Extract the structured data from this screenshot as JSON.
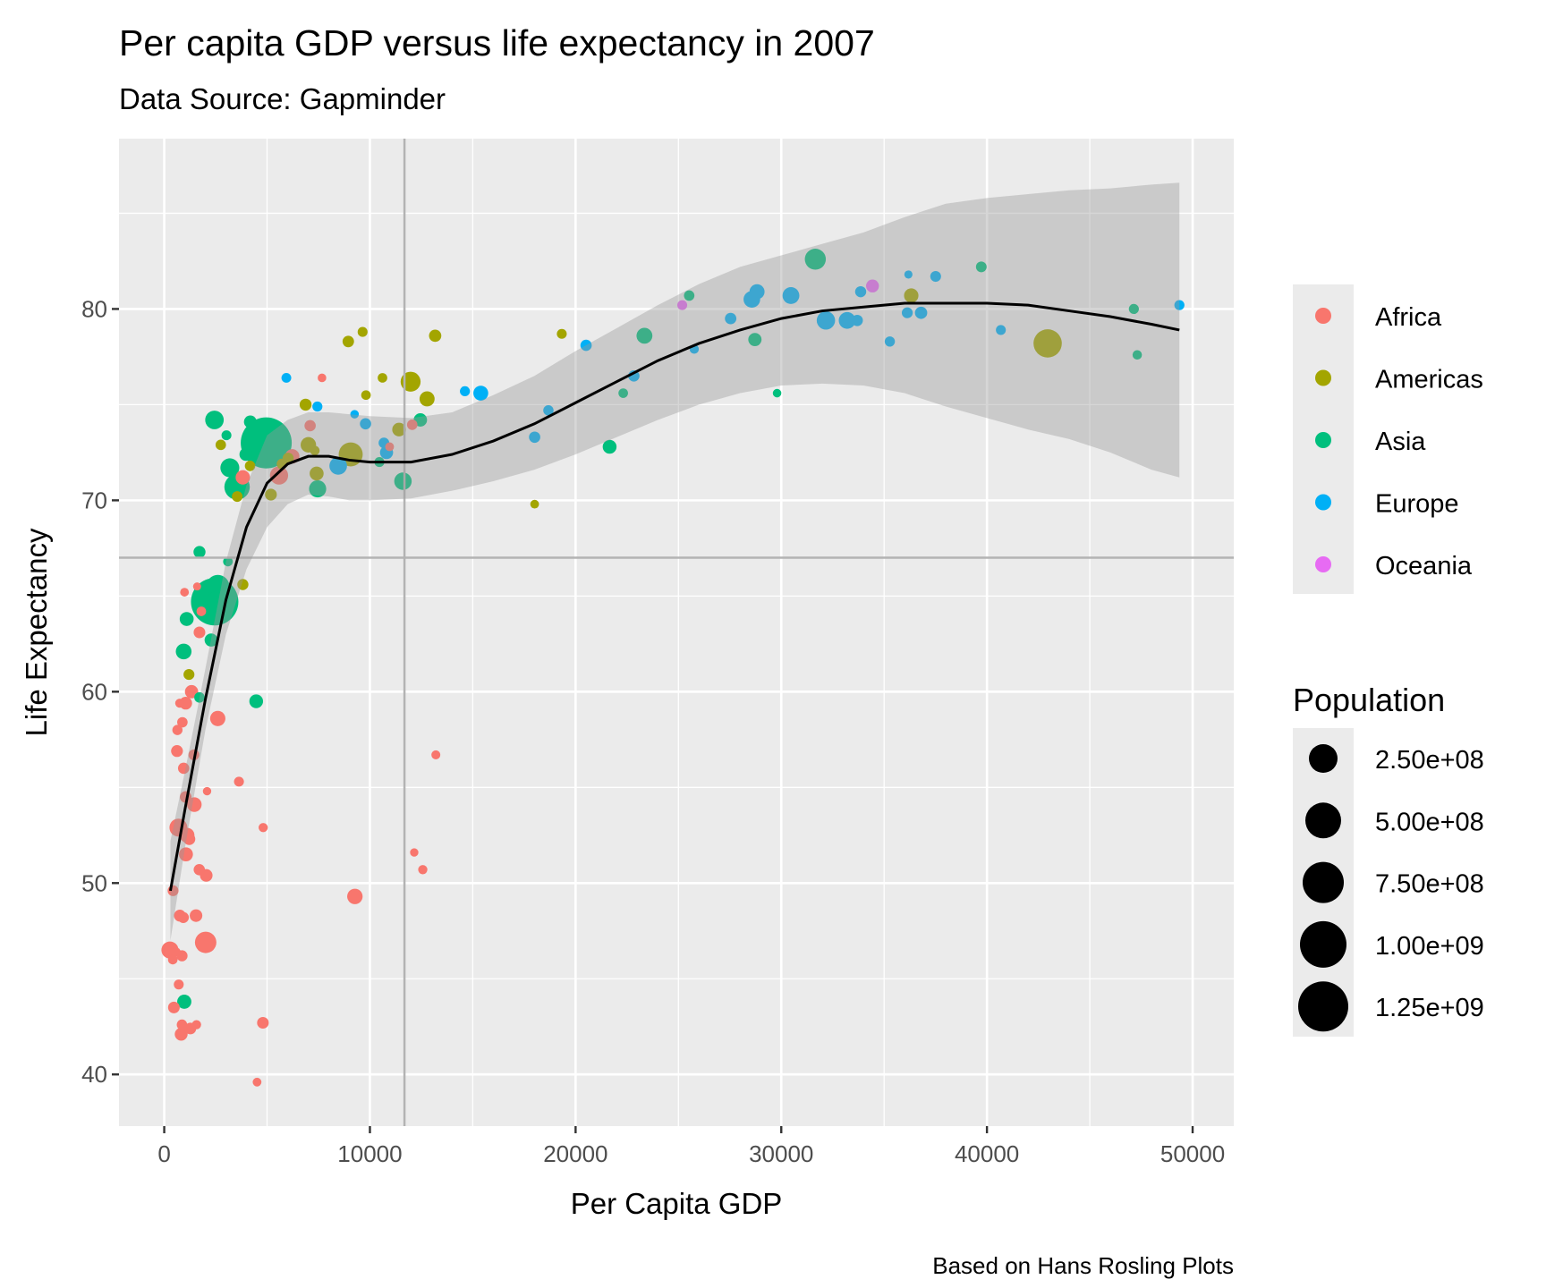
{
  "chart_data": {
    "type": "scatter",
    "title": "Per capita GDP versus life expectancy in 2007",
    "subtitle": "Data Source: Gapminder",
    "caption": "Based on Hans Rosling Plots",
    "xlabel": "Per Capita GDP",
    "ylabel": "Life Expectancy",
    "xlim": [
      -2200,
      52000
    ],
    "ylim": [
      37.3,
      88.9
    ],
    "x_ticks": [
      0,
      10000,
      20000,
      30000,
      40000,
      50000
    ],
    "x_tick_labels": [
      "0",
      "10000",
      "20000",
      "30000",
      "40000",
      "50000"
    ],
    "x_minor": [
      5000,
      15000,
      25000,
      35000,
      45000
    ],
    "y_ticks": [
      40,
      50,
      60,
      70,
      80
    ],
    "y_tick_labels": [
      "40",
      "50",
      "60",
      "70",
      "80"
    ],
    "y_minor": [
      45,
      55,
      65,
      75,
      85
    ],
    "grid": true,
    "reference_lines": {
      "vline_x": 11680,
      "hline_y": 67.0,
      "color": "#b3b3b3"
    },
    "colors": {
      "Africa": "#F8766D",
      "Americas": "#A3A500",
      "Asia": "#00BF7D",
      "Europe": "#00B0F6",
      "Oceania": "#E76BF3"
    },
    "legend_color": {
      "title": "",
      "position": "right",
      "entries": [
        "Africa",
        "Americas",
        "Asia",
        "Europe",
        "Oceania"
      ]
    },
    "legend_size": {
      "title": "Population",
      "position": "right",
      "values": [
        250000000,
        500000000,
        750000000,
        1000000000,
        1250000000
      ],
      "labels": [
        "2.50e+08",
        "5.00e+08",
        "7.50e+08",
        "1.00e+09",
        "1.25e+09"
      ]
    },
    "smooth": {
      "method": "loess",
      "line_color": "#000000",
      "band_color": "#999999",
      "points": [
        {
          "x": 300,
          "y": 49.6,
          "lo": 47.0,
          "hi": 52.2
        },
        {
          "x": 1000,
          "y": 53.8,
          "lo": 51.8,
          "hi": 55.8
        },
        {
          "x": 2000,
          "y": 59.6,
          "lo": 58.0,
          "hi": 61.2
        },
        {
          "x": 3000,
          "y": 64.8,
          "lo": 63.0,
          "hi": 66.8
        },
        {
          "x": 4000,
          "y": 68.6,
          "lo": 66.4,
          "hi": 70.8
        },
        {
          "x": 5000,
          "y": 70.9,
          "lo": 68.6,
          "hi": 73.4
        },
        {
          "x": 6000,
          "y": 71.9,
          "lo": 69.8,
          "hi": 74.2
        },
        {
          "x": 7000,
          "y": 72.3,
          "lo": 70.3,
          "hi": 74.6
        },
        {
          "x": 8000,
          "y": 72.3,
          "lo": 70.2,
          "hi": 74.6
        },
        {
          "x": 9000,
          "y": 72.1,
          "lo": 70.0,
          "hi": 74.5
        },
        {
          "x": 10000,
          "y": 72.0,
          "lo": 70.0,
          "hi": 74.4
        },
        {
          "x": 12000,
          "y": 72.0,
          "lo": 70.1,
          "hi": 74.3
        },
        {
          "x": 14000,
          "y": 72.4,
          "lo": 70.5,
          "hi": 74.6
        },
        {
          "x": 16000,
          "y": 73.1,
          "lo": 71.0,
          "hi": 75.5
        },
        {
          "x": 18000,
          "y": 74.0,
          "lo": 71.6,
          "hi": 76.5
        },
        {
          "x": 20000,
          "y": 75.1,
          "lo": 72.4,
          "hi": 77.8
        },
        {
          "x": 22000,
          "y": 76.2,
          "lo": 73.3,
          "hi": 79.0
        },
        {
          "x": 24000,
          "y": 77.3,
          "lo": 74.2,
          "hi": 80.2
        },
        {
          "x": 26000,
          "y": 78.2,
          "lo": 75.0,
          "hi": 81.3
        },
        {
          "x": 28000,
          "y": 78.9,
          "lo": 75.6,
          "hi": 82.2
        },
        {
          "x": 30000,
          "y": 79.5,
          "lo": 76.0,
          "hi": 82.8
        },
        {
          "x": 32000,
          "y": 79.9,
          "lo": 76.1,
          "hi": 83.4
        },
        {
          "x": 34000,
          "y": 80.1,
          "lo": 76.0,
          "hi": 84.0
        },
        {
          "x": 36000,
          "y": 80.3,
          "lo": 75.6,
          "hi": 84.8
        },
        {
          "x": 38000,
          "y": 80.3,
          "lo": 74.9,
          "hi": 85.5
        },
        {
          "x": 40000,
          "y": 80.3,
          "lo": 74.3,
          "hi": 85.8
        },
        {
          "x": 42000,
          "y": 80.2,
          "lo": 73.7,
          "hi": 86.0
        },
        {
          "x": 44000,
          "y": 79.9,
          "lo": 73.2,
          "hi": 86.2
        },
        {
          "x": 46000,
          "y": 79.6,
          "lo": 72.5,
          "hi": 86.3
        },
        {
          "x": 48000,
          "y": 79.2,
          "lo": 71.6,
          "hi": 86.5
        },
        {
          "x": 49357,
          "y": 78.9,
          "lo": 71.2,
          "hi": 86.6
        }
      ]
    },
    "points": [
      {
        "c": "Africa",
        "x": 6223,
        "y": 72.3,
        "pop": 33
      },
      {
        "c": "Africa",
        "x": 4797,
        "y": 42.7,
        "pop": 12
      },
      {
        "c": "Africa",
        "x": 1441,
        "y": 56.7,
        "pop": 8
      },
      {
        "c": "Africa",
        "x": 12570,
        "y": 50.7,
        "pop": 2
      },
      {
        "c": "Africa",
        "x": 1217,
        "y": 52.3,
        "pop": 14
      },
      {
        "c": "Africa",
        "x": 430,
        "y": 49.6,
        "pop": 8
      },
      {
        "c": "Africa",
        "x": 2042,
        "y": 50.4,
        "pop": 18
      },
      {
        "c": "Africa",
        "x": 706,
        "y": 44.7,
        "pop": 4
      },
      {
        "c": "Africa",
        "x": 1704,
        "y": 50.7,
        "pop": 10
      },
      {
        "c": "Africa",
        "x": 986,
        "y": 65.2,
        "pop": 1
      },
      {
        "c": "Africa",
        "x": 278,
        "y": 46.5,
        "pop": 64
      },
      {
        "c": "Africa",
        "x": 3633,
        "y": 55.3,
        "pop": 4
      },
      {
        "c": "Africa",
        "x": 1545,
        "y": 48.3,
        "pop": 18
      },
      {
        "c": "Africa",
        "x": 2082,
        "y": 54.8,
        "pop": 0.5
      },
      {
        "c": "Africa",
        "x": 5581,
        "y": 71.3,
        "pop": 80
      },
      {
        "c": "Africa",
        "x": 12154,
        "y": 51.6,
        "pop": 0.5
      },
      {
        "c": "Africa",
        "x": 641,
        "y": 58.0,
        "pop": 5
      },
      {
        "c": "Africa",
        "x": 690,
        "y": 52.9,
        "pop": 76
      },
      {
        "c": "Africa",
        "x": 13206,
        "y": 56.7,
        "pop": 1.5
      },
      {
        "c": "Africa",
        "x": 753,
        "y": 59.4,
        "pop": 1.7
      },
      {
        "c": "Africa",
        "x": 1328,
        "y": 60.0,
        "pop": 23
      },
      {
        "c": "Africa",
        "x": 943,
        "y": 56.0,
        "pop": 10
      },
      {
        "c": "Africa",
        "x": 579,
        "y": 46.4,
        "pop": 1.5
      },
      {
        "c": "Africa",
        "x": 1463,
        "y": 54.1,
        "pop": 35
      },
      {
        "c": "Africa",
        "x": 1569,
        "y": 42.6,
        "pop": 2
      },
      {
        "c": "Africa",
        "x": 415,
        "y": 46.0,
        "pop": 3
      },
      {
        "c": "Africa",
        "x": 12057,
        "y": 73.95,
        "pop": 6
      },
      {
        "c": "Africa",
        "x": 1045,
        "y": 59.4,
        "pop": 19
      },
      {
        "c": "Africa",
        "x": 759,
        "y": 48.3,
        "pop": 13
      },
      {
        "c": "Africa",
        "x": 1043,
        "y": 54.5,
        "pop": 12
      },
      {
        "c": "Africa",
        "x": 1803,
        "y": 64.2,
        "pop": 3
      },
      {
        "c": "Africa",
        "x": 10957,
        "y": 72.8,
        "pop": 1.2
      },
      {
        "c": "Africa",
        "x": 3820,
        "y": 71.2,
        "pop": 33
      },
      {
        "c": "Africa",
        "x": 824,
        "y": 42.1,
        "pop": 20
      },
      {
        "c": "Africa",
        "x": 4811,
        "y": 52.9,
        "pop": 2
      },
      {
        "c": "Africa",
        "x": 620,
        "y": 56.9,
        "pop": 13
      },
      {
        "c": "Africa",
        "x": 2014,
        "y": 46.9,
        "pop": 135
      },
      {
        "c": "Africa",
        "x": 7670,
        "y": 76.4,
        "pop": 0.8
      },
      {
        "c": "Africa",
        "x": 863,
        "y": 46.2,
        "pop": 9
      },
      {
        "c": "Africa",
        "x": 1598,
        "y": 65.5,
        "pop": 0.2
      },
      {
        "c": "Africa",
        "x": 1712,
        "y": 63.1,
        "pop": 12
      },
      {
        "c": "Africa",
        "x": 862,
        "y": 42.6,
        "pop": 6
      },
      {
        "c": "Africa",
        "x": 926,
        "y": 48.2,
        "pop": 9
      },
      {
        "c": "Africa",
        "x": 9270,
        "y": 49.3,
        "pop": 44
      },
      {
        "c": "Africa",
        "x": 2602,
        "y": 58.6,
        "pop": 42
      },
      {
        "c": "Africa",
        "x": 4513,
        "y": 39.6,
        "pop": 1.1
      },
      {
        "c": "Africa",
        "x": 1107,
        "y": 52.5,
        "pop": 38
      },
      {
        "c": "Africa",
        "x": 883,
        "y": 58.4,
        "pop": 6
      },
      {
        "c": "Africa",
        "x": 7093,
        "y": 73.9,
        "pop": 10
      },
      {
        "c": "Africa",
        "x": 1056,
        "y": 51.5,
        "pop": 29
      },
      {
        "c": "Africa",
        "x": 1271,
        "y": 42.4,
        "pop": 12
      },
      {
        "c": "Africa",
        "x": 470,
        "y": 43.5,
        "pop": 12
      },
      {
        "c": "Americas",
        "x": 12779,
        "y": 75.3,
        "pop": 40
      },
      {
        "c": "Americas",
        "x": 3822,
        "y": 65.6,
        "pop": 9
      },
      {
        "c": "Americas",
        "x": 9066,
        "y": 72.4,
        "pop": 190
      },
      {
        "c": "Americas",
        "x": 36319,
        "y": 80.7,
        "pop": 33
      },
      {
        "c": "Americas",
        "x": 13172,
        "y": 78.6,
        "pop": 16
      },
      {
        "c": "Americas",
        "x": 7007,
        "y": 72.9,
        "pop": 44
      },
      {
        "c": "Americas",
        "x": 9645,
        "y": 78.8,
        "pop": 4
      },
      {
        "c": "Americas",
        "x": 8948,
        "y": 78.3,
        "pop": 11
      },
      {
        "c": "Americas",
        "x": 6025,
        "y": 72.2,
        "pop": 9
      },
      {
        "c": "Americas",
        "x": 6873,
        "y": 75.0,
        "pop": 14
      },
      {
        "c": "Americas",
        "x": 5728,
        "y": 71.9,
        "pop": 7
      },
      {
        "c": "Americas",
        "x": 5186,
        "y": 70.3,
        "pop": 13
      },
      {
        "c": "Americas",
        "x": 1202,
        "y": 60.9,
        "pop": 8
      },
      {
        "c": "Americas",
        "x": 3548,
        "y": 70.2,
        "pop": 7
      },
      {
        "c": "Americas",
        "x": 7321,
        "y": 72.6,
        "pop": 3
      },
      {
        "c": "Americas",
        "x": 11978,
        "y": 76.2,
        "pop": 108
      },
      {
        "c": "Americas",
        "x": 2749,
        "y": 72.9,
        "pop": 6
      },
      {
        "c": "Americas",
        "x": 9809,
        "y": 75.5,
        "pop": 3
      },
      {
        "c": "Americas",
        "x": 4173,
        "y": 71.8,
        "pop": 6
      },
      {
        "c": "Americas",
        "x": 7409,
        "y": 71.4,
        "pop": 29
      },
      {
        "c": "Americas",
        "x": 19329,
        "y": 78.7,
        "pop": 4
      },
      {
        "c": "Americas",
        "x": 18009,
        "y": 69.8,
        "pop": 1
      },
      {
        "c": "Americas",
        "x": 42952,
        "y": 78.2,
        "pop": 301
      },
      {
        "c": "Americas",
        "x": 10611,
        "y": 76.4,
        "pop": 3
      },
      {
        "c": "Americas",
        "x": 11416,
        "y": 73.7,
        "pop": 26
      },
      {
        "c": "Asia",
        "x": 2605,
        "y": 64.7,
        "pop": 150
      },
      {
        "c": "Asia",
        "x": 4959,
        "y": 73.0,
        "pop": 1319
      },
      {
        "c": "Asia",
        "x": 1714,
        "y": 67.3,
        "pop": 14
      },
      {
        "c": "Asia",
        "x": 2452,
        "y": 64.7,
        "pop": 1110
      },
      {
        "c": "Asia",
        "x": 3541,
        "y": 70.7,
        "pop": 224
      },
      {
        "c": "Asia",
        "x": 11606,
        "y": 71.0,
        "pop": 69
      },
      {
        "c": "Asia",
        "x": 4471,
        "y": 59.5,
        "pop": 27
      },
      {
        "c": "Asia",
        "x": 25523,
        "y": 80.7,
        "pop": 6
      },
      {
        "c": "Asia",
        "x": 31656,
        "y": 82.6,
        "pop": 127
      },
      {
        "c": "Asia",
        "x": 4519,
        "y": 72.5,
        "pop": 6
      },
      {
        "c": "Asia",
        "x": 23348,
        "y": 78.6,
        "pop": 49
      },
      {
        "c": "Asia",
        "x": 47307,
        "y": 77.6,
        "pop": 2.5
      },
      {
        "c": "Asia",
        "x": 10461,
        "y": 72.0,
        "pop": 4
      },
      {
        "c": "Asia",
        "x": 12452,
        "y": 74.2,
        "pop": 24
      },
      {
        "c": "Asia",
        "x": 3096,
        "y": 66.8,
        "pop": 3
      },
      {
        "c": "Asia",
        "x": 944,
        "y": 62.1,
        "pop": 47
      },
      {
        "c": "Asia",
        "x": 1091,
        "y": 63.8,
        "pop": 29
      },
      {
        "c": "Asia",
        "x": 22316,
        "y": 75.6,
        "pop": 3
      },
      {
        "c": "Asia",
        "x": 2606,
        "y": 65.5,
        "pop": 169
      },
      {
        "c": "Asia",
        "x": 3190,
        "y": 71.7,
        "pop": 91
      },
      {
        "c": "Asia",
        "x": 21655,
        "y": 72.8,
        "pop": 28
      },
      {
        "c": "Asia",
        "x": 47143,
        "y": 80.0,
        "pop": 4.5
      },
      {
        "c": "Asia",
        "x": 3970,
        "y": 72.4,
        "pop": 20
      },
      {
        "c": "Asia",
        "x": 4185,
        "y": 74.1,
        "pop": 19
      },
      {
        "c": "Asia",
        "x": 28718,
        "y": 78.4,
        "pop": 23
      },
      {
        "c": "Asia",
        "x": 7458,
        "y": 70.6,
        "pop": 65
      },
      {
        "c": "Asia",
        "x": 2442,
        "y": 74.2,
        "pop": 85
      },
      {
        "c": "Asia",
        "x": 3025,
        "y": 73.4,
        "pop": 4
      },
      {
        "c": "Asia",
        "x": 2281,
        "y": 62.7,
        "pop": 22
      },
      {
        "c": "Asia",
        "x": 29796,
        "y": 75.6,
        "pop": 0.7
      },
      {
        "c": "Asia",
        "x": 39725,
        "y": 82.2,
        "pop": 7
      },
      {
        "c": "Asia",
        "x": 1713,
        "y": 59.7,
        "pop": 6
      },
      {
        "c": "Asia",
        "x": 974,
        "y": 43.8,
        "pop": 31
      },
      {
        "c": "Europe",
        "x": 5937,
        "y": 76.4,
        "pop": 3.6
      },
      {
        "c": "Europe",
        "x": 36126,
        "y": 79.8,
        "pop": 8
      },
      {
        "c": "Europe",
        "x": 33693,
        "y": 79.4,
        "pop": 10
      },
      {
        "c": "Europe",
        "x": 7446,
        "y": 74.9,
        "pop": 4.5
      },
      {
        "c": "Europe",
        "x": 10681,
        "y": 73.0,
        "pop": 7
      },
      {
        "c": "Europe",
        "x": 14619,
        "y": 75.7,
        "pop": 4.5
      },
      {
        "c": "Europe",
        "x": 22833,
        "y": 76.5,
        "pop": 10
      },
      {
        "c": "Europe",
        "x": 35278,
        "y": 78.3,
        "pop": 5
      },
      {
        "c": "Europe",
        "x": 33207,
        "y": 79.4,
        "pop": 5
      },
      {
        "c": "Europe",
        "x": 30470,
        "y": 80.7,
        "pop": 61
      },
      {
        "c": "Europe",
        "x": 32170,
        "y": 79.4,
        "pop": 82
      },
      {
        "c": "Europe",
        "x": 27538,
        "y": 79.5,
        "pop": 11
      },
      {
        "c": "Europe",
        "x": 18009,
        "y": 73.3,
        "pop": 10
      },
      {
        "c": "Europe",
        "x": 36181,
        "y": 81.8,
        "pop": 0.3
      },
      {
        "c": "Europe",
        "x": 40676,
        "y": 78.9,
        "pop": 4
      },
      {
        "c": "Europe",
        "x": 28570,
        "y": 80.5,
        "pop": 58
      },
      {
        "c": "Europe",
        "x": 9254,
        "y": 74.5,
        "pop": 0.7
      },
      {
        "c": "Europe",
        "x": 36798,
        "y": 79.8,
        "pop": 16
      },
      {
        "c": "Europe",
        "x": 49357,
        "y": 80.2,
        "pop": 4.6
      },
      {
        "c": "Europe",
        "x": 15390,
        "y": 75.6,
        "pop": 38
      },
      {
        "c": "Europe",
        "x": 20510,
        "y": 78.1,
        "pop": 10
      },
      {
        "c": "Europe",
        "x": 10808,
        "y": 72.5,
        "pop": 22
      },
      {
        "c": "Europe",
        "x": 9787,
        "y": 74.0,
        "pop": 10
      },
      {
        "c": "Europe",
        "x": 18678,
        "y": 74.7,
        "pop": 5.4
      },
      {
        "c": "Europe",
        "x": 25768,
        "y": 77.9,
        "pop": 2
      },
      {
        "c": "Europe",
        "x": 28821,
        "y": 80.9,
        "pop": 40
      },
      {
        "c": "Europe",
        "x": 33860,
        "y": 80.9,
        "pop": 9
      },
      {
        "c": "Europe",
        "x": 37506,
        "y": 81.7,
        "pop": 7.5
      },
      {
        "c": "Europe",
        "x": 8458,
        "y": 71.8,
        "pop": 71
      },
      {
        "c": "Europe",
        "x": 33203,
        "y": 79.4,
        "pop": 60
      },
      {
        "c": "Oceania",
        "x": 34435,
        "y": 81.2,
        "pop": 20
      },
      {
        "c": "Oceania",
        "x": 25185,
        "y": 80.2,
        "pop": 4
      }
    ]
  }
}
